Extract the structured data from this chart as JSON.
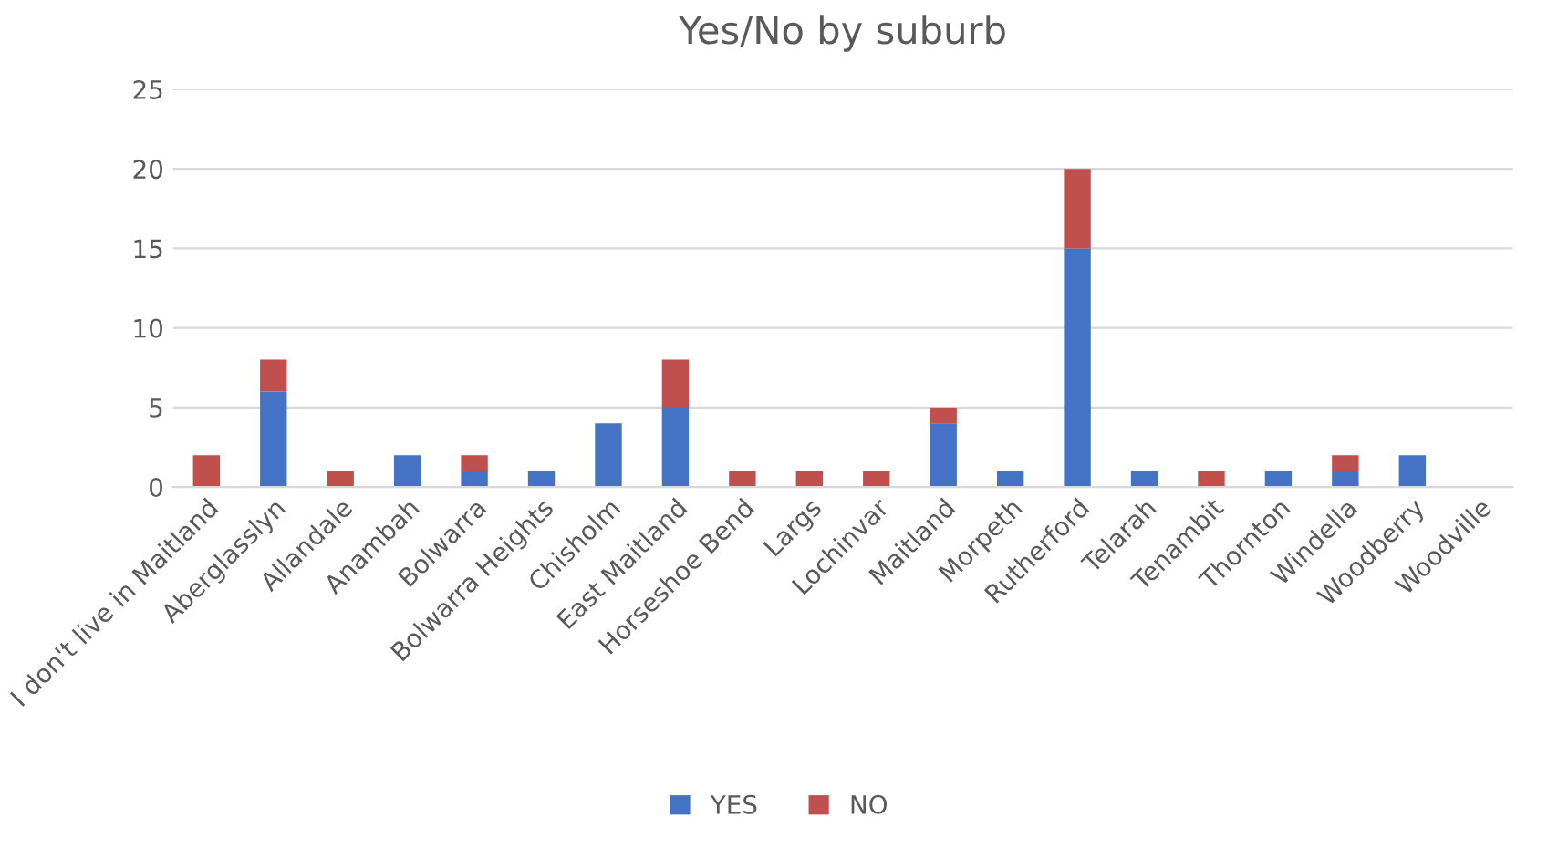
{
  "chart_data": {
    "type": "bar",
    "title": "Yes/No by suburb",
    "stacked": true,
    "categories": [
      "I don't live in Maitland",
      "Aberglasslyn",
      "Allandale",
      "Anambah",
      "Bolwarra",
      "Bolwarra Heights",
      "Chisholm",
      "East Maitland",
      "Horseshoe Bend",
      "Largs",
      "Lochinvar",
      "Maitland",
      "Morpeth",
      "Rutherford",
      "Telarah",
      "Tenambit",
      "Thornton",
      "Windella",
      "Woodberry",
      "Woodville"
    ],
    "series": [
      {
        "name": "YES",
        "color": "#4472c4",
        "values": [
          0,
          6,
          0,
          2,
          1,
          1,
          4,
          5,
          0,
          0,
          0,
          4,
          1,
          15,
          1,
          0,
          1,
          1,
          2,
          0
        ]
      },
      {
        "name": "NO",
        "color": "#c0504d",
        "values": [
          2,
          2,
          1,
          0,
          1,
          0,
          0,
          3,
          1,
          1,
          1,
          1,
          0,
          5,
          0,
          1,
          0,
          1,
          0,
          0
        ]
      }
    ],
    "ylim": [
      0,
      25
    ],
    "yticks": [
      0,
      5,
      10,
      15,
      20,
      25
    ],
    "grid": "y",
    "legend": "bottom"
  }
}
